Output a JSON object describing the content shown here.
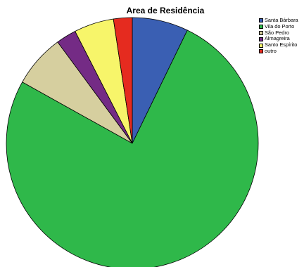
{
  "chart_data": {
    "type": "pie",
    "title": "Area de Residência",
    "legend_position": "top-right",
    "slices": [
      {
        "label": "Santa Bárbara",
        "value": 7.2,
        "color": "#3a5fb3"
      },
      {
        "label": "Vila do Porto",
        "value": 75.9,
        "color": "#2fb84a"
      },
      {
        "label": "São Pedro",
        "value": 6.8,
        "color": "#d6cf9f"
      },
      {
        "label": "Almagreira",
        "value": 2.6,
        "color": "#742b85"
      },
      {
        "label": "Santo Espírito",
        "value": 5.1,
        "color": "#f7f56a"
      },
      {
        "label": "outro",
        "value": 2.4,
        "color": "#e52b1f"
      }
    ]
  }
}
